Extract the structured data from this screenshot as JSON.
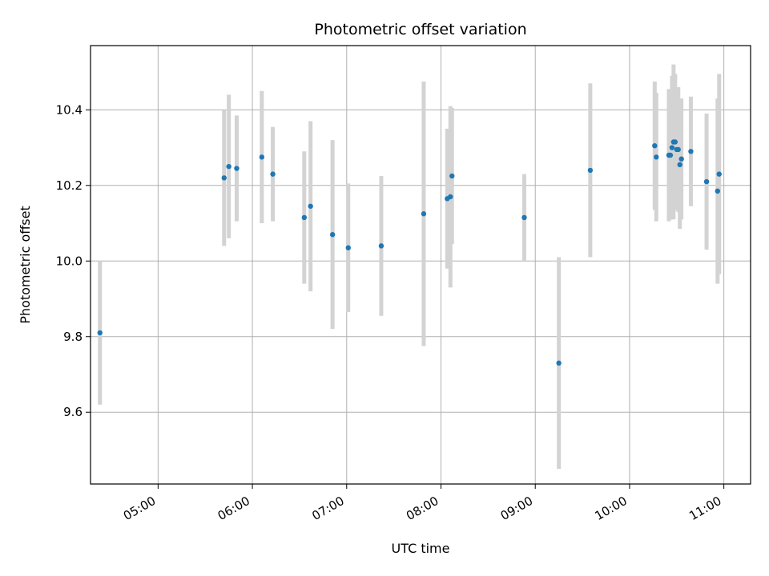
{
  "chart_data": {
    "type": "scatter",
    "title": "Photometric offset variation",
    "xlabel": "UTC time",
    "ylabel": "Photometric offset",
    "x_ticks": [
      "05:00",
      "06:00",
      "07:00",
      "08:00",
      "09:00",
      "10:00",
      "11:00"
    ],
    "y_ticks": [
      "9.6",
      "9.8",
      "10.0",
      "10.2",
      "10.4"
    ],
    "xlim": [
      "04:17",
      "11:17"
    ],
    "ylim": [
      9.41,
      10.57
    ],
    "grid": true,
    "colors": {
      "points": "#1f77b4",
      "errorbars": "#d3d3d3",
      "grid": "#b0b0b0"
    },
    "points": [
      {
        "t": "04:23",
        "y": 9.81,
        "err": 0.19
      },
      {
        "t": "05:42",
        "y": 10.22,
        "err": 0.18
      },
      {
        "t": "05:45",
        "y": 10.25,
        "err": 0.19
      },
      {
        "t": "05:50",
        "y": 10.245,
        "err": 0.14
      },
      {
        "t": "06:06",
        "y": 10.275,
        "err": 0.175
      },
      {
        "t": "06:13",
        "y": 10.23,
        "err": 0.125
      },
      {
        "t": "06:33",
        "y": 10.115,
        "err": 0.175
      },
      {
        "t": "06:37",
        "y": 10.145,
        "err": 0.225
      },
      {
        "t": "06:51",
        "y": 10.07,
        "err": 0.25
      },
      {
        "t": "07:01",
        "y": 10.035,
        "err": 0.17
      },
      {
        "t": "07:22",
        "y": 10.04,
        "err": 0.185
      },
      {
        "t": "07:49",
        "y": 10.125,
        "err": 0.35
      },
      {
        "t": "08:04",
        "y": 10.165,
        "err": 0.185
      },
      {
        "t": "08:06",
        "y": 10.17,
        "err": 0.24
      },
      {
        "t": "08:07",
        "y": 10.225,
        "err": 0.18
      },
      {
        "t": "08:53",
        "y": 10.115,
        "err": 0.115
      },
      {
        "t": "09:15",
        "y": 9.73,
        "err": 0.28
      },
      {
        "t": "09:35",
        "y": 10.24,
        "err": 0.23
      },
      {
        "t": "10:16",
        "y": 10.305,
        "err": 0.17
      },
      {
        "t": "10:17",
        "y": 10.275,
        "err": 0.17
      },
      {
        "t": "10:25",
        "y": 10.28,
        "err": 0.175
      },
      {
        "t": "10:26",
        "y": 10.28,
        "err": 0.17
      },
      {
        "t": "10:27",
        "y": 10.3,
        "err": 0.19
      },
      {
        "t": "10:28",
        "y": 10.315,
        "err": 0.205
      },
      {
        "t": "10:29",
        "y": 10.315,
        "err": 0.18
      },
      {
        "t": "10:30",
        "y": 10.295,
        "err": 0.16
      },
      {
        "t": "10:31",
        "y": 10.295,
        "err": 0.165
      },
      {
        "t": "10:32",
        "y": 10.255,
        "err": 0.17
      },
      {
        "t": "10:33",
        "y": 10.27,
        "err": 0.16
      },
      {
        "t": "10:39",
        "y": 10.29,
        "err": 0.145
      },
      {
        "t": "10:49",
        "y": 10.21,
        "err": 0.18
      },
      {
        "t": "10:56",
        "y": 10.185,
        "err": 0.245
      },
      {
        "t": "10:57",
        "y": 10.23,
        "err": 0.265
      }
    ]
  }
}
